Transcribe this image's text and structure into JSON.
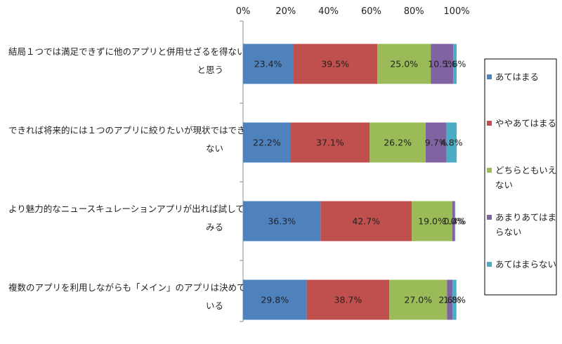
{
  "chart_data": {
    "type": "bar",
    "orientation": "horizontal",
    "stacked": "percent",
    "title": "",
    "xlabel": "",
    "ylabel": "",
    "xlim": [
      0,
      100
    ],
    "x_ticks": [
      "0%",
      "20%",
      "40%",
      "60%",
      "80%",
      "100%"
    ],
    "x_axis_position": "top",
    "grid": false,
    "legend": "right",
    "categories": [
      [
        "結局１つでは満足できずに他のアプリと併用せざるを得ない",
        "と思う"
      ],
      [
        "できれば将来的には１つのアプリに絞りたいが現状ではでき",
        "ない"
      ],
      [
        "より魅力的なニュースキュレーションアプリが出れば試して",
        "みる"
      ],
      [
        "複数のアプリを利用しながらも「メイン」のアプリは決めて",
        "いる"
      ]
    ],
    "series": [
      {
        "name": [
          "あてはまる"
        ],
        "color": "#4f81bd",
        "values": [
          23.4,
          22.2,
          36.3,
          29.8
        ],
        "labels": [
          "23.4%",
          "22.2%",
          "36.3%",
          "29.8%"
        ]
      },
      {
        "name": [
          "ややあてはまる"
        ],
        "color": "#c0504d",
        "values": [
          39.5,
          37.1,
          42.7,
          38.7
        ],
        "labels": [
          "39.5%",
          "37.1%",
          "42.7%",
          "38.7%"
        ]
      },
      {
        "name": [
          "どちらともいえ",
          "ない"
        ],
        "color": "#9bbb59",
        "values": [
          25.0,
          26.2,
          19.0,
          27.0
        ],
        "labels": [
          "25.0%",
          "26.2%",
          "19.0%",
          "27.0%"
        ]
      },
      {
        "name": [
          "あまりあてはま",
          "らない"
        ],
        "color": "#8064a2",
        "values": [
          10.5,
          9.7,
          1.0,
          2.6
        ],
        "labels": [
          "10.5%",
          "9.7%",
          "1.0%",
          "2.6%"
        ]
      },
      {
        "name": [
          "あてはまらない"
        ],
        "color": "#4bacc6",
        "values": [
          1.6,
          4.8,
          0.4,
          1.8
        ],
        "labels": [
          "1.6%",
          "4.8%",
          "0.4%",
          "1.8%"
        ]
      }
    ]
  }
}
